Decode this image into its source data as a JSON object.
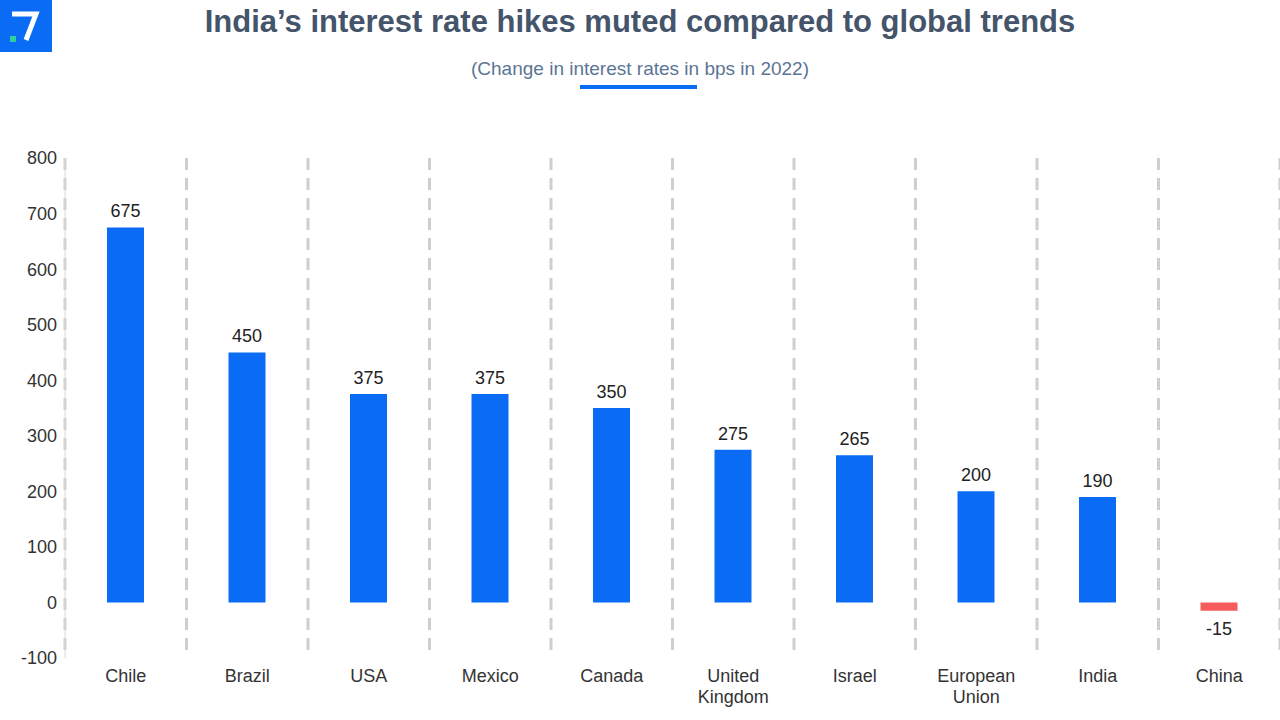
{
  "chart_data": {
    "type": "bar",
    "title": "India’s interest rate hikes muted compared to global trends",
    "subtitle": "(Change in interest rates in bps in 2022)",
    "categories": [
      "Chile",
      "Brazil",
      "USA",
      "Mexico",
      "Canada",
      "United Kingdom",
      "Israel",
      "European Union",
      "India",
      "China"
    ],
    "values": [
      675,
      450,
      375,
      375,
      350,
      275,
      265,
      200,
      190,
      -15
    ],
    "colors": [
      "#0a6cf5",
      "#0a6cf5",
      "#0a6cf5",
      "#0a6cf5",
      "#0a6cf5",
      "#0a6cf5",
      "#0a6cf5",
      "#0a6cf5",
      "#0a6cf5",
      "#f75c5c"
    ],
    "ylim": [
      -100,
      800
    ],
    "yticks": [
      -100,
      0,
      100,
      200,
      300,
      400,
      500,
      600,
      700,
      800
    ],
    "grid": true,
    "data_labels": true
  }
}
